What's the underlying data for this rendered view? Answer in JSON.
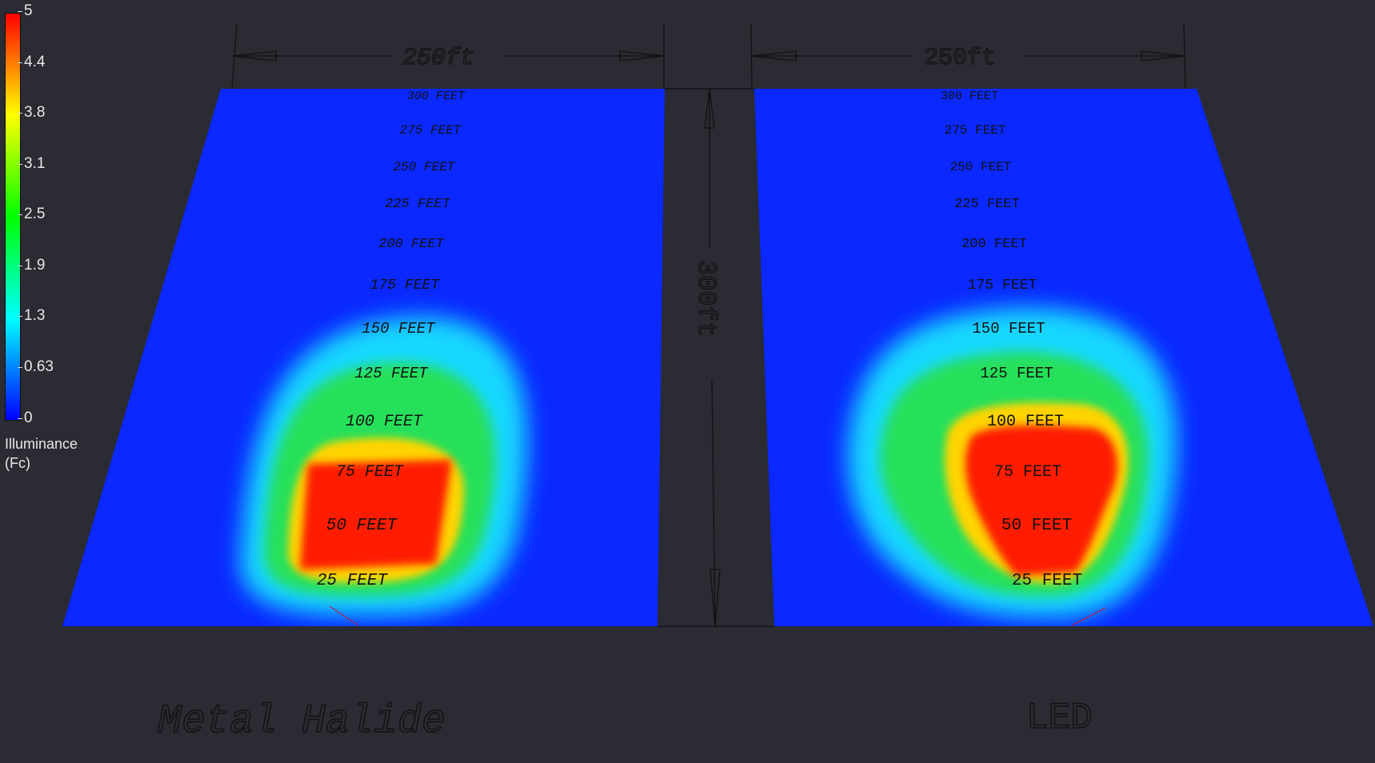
{
  "legend": {
    "title_line1": "Illuminance",
    "title_line2": "(Fc)",
    "ticks": [
      "5",
      "4.4",
      "3.8",
      "3.1",
      "2.5",
      "1.9",
      "1.3",
      "0.63",
      "0"
    ],
    "min": 0,
    "max": 5,
    "colors": [
      "#0000ff",
      "#0080ff",
      "#00ffff",
      "#00ff80",
      "#00ff00",
      "#80ff00",
      "#ffff00",
      "#ff8000",
      "#ff0000"
    ]
  },
  "dimensions": {
    "left_width": "250ft",
    "right_width": "250ft",
    "length": "300ft"
  },
  "distance_labels": [
    "300 FEET",
    "275 FEET",
    "250 FEET",
    "225 FEET",
    "200 FEET",
    "175 FEET",
    "150 FEET",
    "125 FEET",
    "100 FEET",
    "75 FEET",
    "50 FEET",
    "25 FEET"
  ],
  "panels": {
    "left_title": "Metal Halide",
    "right_title": "LED"
  }
}
